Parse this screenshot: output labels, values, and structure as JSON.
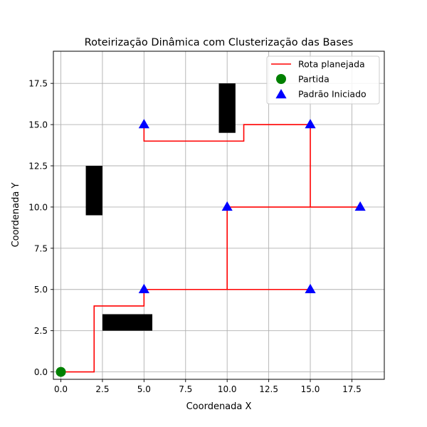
{
  "chart_data": {
    "type": "line",
    "title": "Roteirização Dinâmica com Clusterização das Bases",
    "xlabel": "Coordenada X",
    "ylabel": "Coordenada Y",
    "xlim": [
      -0.45,
      19.45
    ],
    "ylim": [
      -0.45,
      19.45
    ],
    "xticks": [
      0,
      2.5,
      5,
      7.5,
      10,
      12.5,
      15,
      17.5
    ],
    "yticks": [
      0,
      2.5,
      5,
      7.5,
      10,
      12.5,
      15,
      17.5
    ],
    "xtick_labels": [
      "0.0",
      "2.5",
      "5.0",
      "7.5",
      "10.0",
      "12.5",
      "15.0",
      "17.5"
    ],
    "ytick_labels": [
      "0.0",
      "2.5",
      "5.0",
      "7.5",
      "10.0",
      "12.5",
      "15.0",
      "17.5"
    ],
    "grid": true,
    "legend_position": "top-right",
    "legend": [
      {
        "label": "Rota planejada",
        "marker": "line",
        "color": "#ff0000"
      },
      {
        "label": "Partida",
        "marker": "circle",
        "color": "#008000"
      },
      {
        "label": "Padrão Iniciado",
        "marker": "triangle",
        "color": "#0000ff"
      }
    ],
    "route": {
      "name": "Rota planejada",
      "color": "#ff0000",
      "points": [
        [
          0,
          0
        ],
        [
          2,
          0
        ],
        [
          2,
          4
        ],
        [
          5,
          4
        ],
        [
          5,
          5
        ],
        [
          10,
          5
        ],
        [
          15,
          5
        ],
        [
          10,
          5
        ],
        [
          10,
          10
        ],
        [
          15,
          10
        ],
        [
          18,
          10
        ],
        [
          15,
          10
        ],
        [
          15,
          15
        ],
        [
          11,
          15
        ],
        [
          11,
          14
        ],
        [
          5,
          14
        ],
        [
          5,
          15
        ]
      ]
    },
    "start": {
      "name": "Partida",
      "color": "#008000",
      "point": [
        0,
        0
      ]
    },
    "bases": {
      "name": "Padrão Iniciado",
      "color": "#0000ff",
      "points": [
        [
          5,
          5
        ],
        [
          15,
          5
        ],
        [
          10,
          10
        ],
        [
          18,
          10
        ],
        [
          5,
          15
        ],
        [
          15,
          15
        ]
      ]
    },
    "obstacles": {
      "color": "#000000",
      "rects": [
        {
          "x0": 2.5,
          "x1": 5.5,
          "y0": 2.5,
          "y1": 3.5
        },
        {
          "x0": 1.5,
          "x1": 2.5,
          "y0": 9.5,
          "y1": 12.5
        },
        {
          "x0": 9.5,
          "x1": 10.5,
          "y0": 14.5,
          "y1": 17.5
        }
      ]
    }
  }
}
